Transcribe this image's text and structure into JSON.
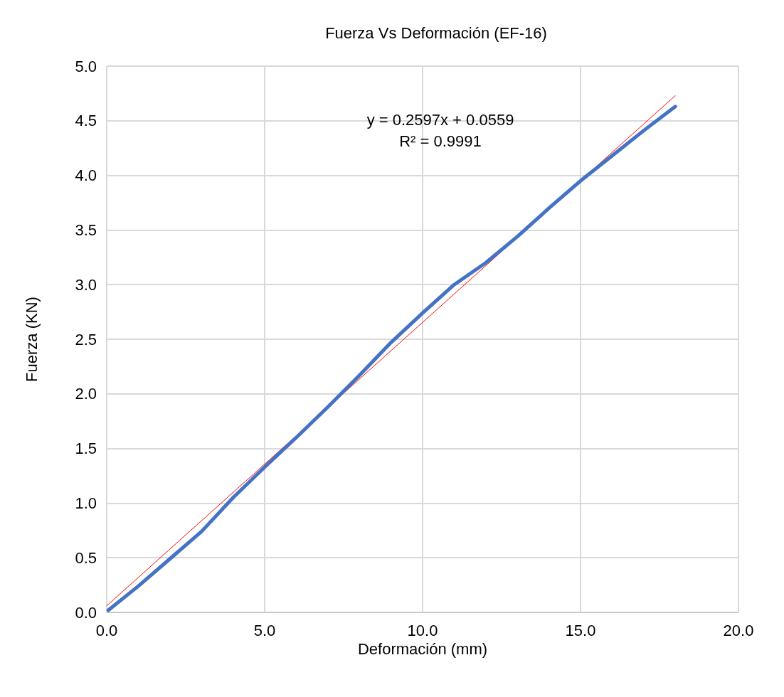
{
  "chart_data": {
    "type": "line",
    "title": "Fuerza Vs Deformación (EF-16)",
    "xlabel": "Deformación (mm)",
    "ylabel": "Fuerza (KN)",
    "xlim": [
      0,
      20
    ],
    "xticks": [
      {
        "value": 0,
        "label": "0.0"
      },
      {
        "value": 5,
        "label": "5.0"
      },
      {
        "value": 10,
        "label": "10.0"
      },
      {
        "value": 15,
        "label": "15.0"
      },
      {
        "value": 20,
        "label": "20.0"
      }
    ],
    "ylim": [
      0,
      5
    ],
    "yticks": [
      {
        "value": 0,
        "label": "0.0"
      },
      {
        "value": 0.5,
        "label": "0.5"
      },
      {
        "value": 1,
        "label": "1.0"
      },
      {
        "value": 1.5,
        "label": "1.5"
      },
      {
        "value": 2,
        "label": "2.0"
      },
      {
        "value": 2.5,
        "label": "2.5"
      },
      {
        "value": 3,
        "label": "3.0"
      },
      {
        "value": 3.5,
        "label": "3.5"
      },
      {
        "value": 4,
        "label": "4.0"
      },
      {
        "value": 4.5,
        "label": "4.5"
      },
      {
        "value": 5,
        "label": "5.0"
      }
    ],
    "grid": true,
    "marker": "none",
    "line_style": "solid",
    "series": [
      {
        "color": "#4472c4",
        "x": [
          0.05,
          1,
          2,
          3,
          4,
          5,
          6,
          7,
          8,
          9,
          10,
          11,
          12,
          13,
          14,
          15,
          16,
          17,
          18
        ],
        "values": [
          0.02,
          0.24,
          0.49,
          0.74,
          1.05,
          1.33,
          1.6,
          1.88,
          2.17,
          2.47,
          2.74,
          3.0,
          3.2,
          3.44,
          3.7,
          3.95,
          4.18,
          4.41,
          4.63
        ]
      },
      {
        "type": "line",
        "color": "#ff0000",
        "x": [
          0,
          18
        ],
        "values": [
          0.06,
          4.73
        ]
      }
    ],
    "annotations": [
      "y = 0.2597x + 0.0559\nR² = 0.9991"
    ]
  }
}
